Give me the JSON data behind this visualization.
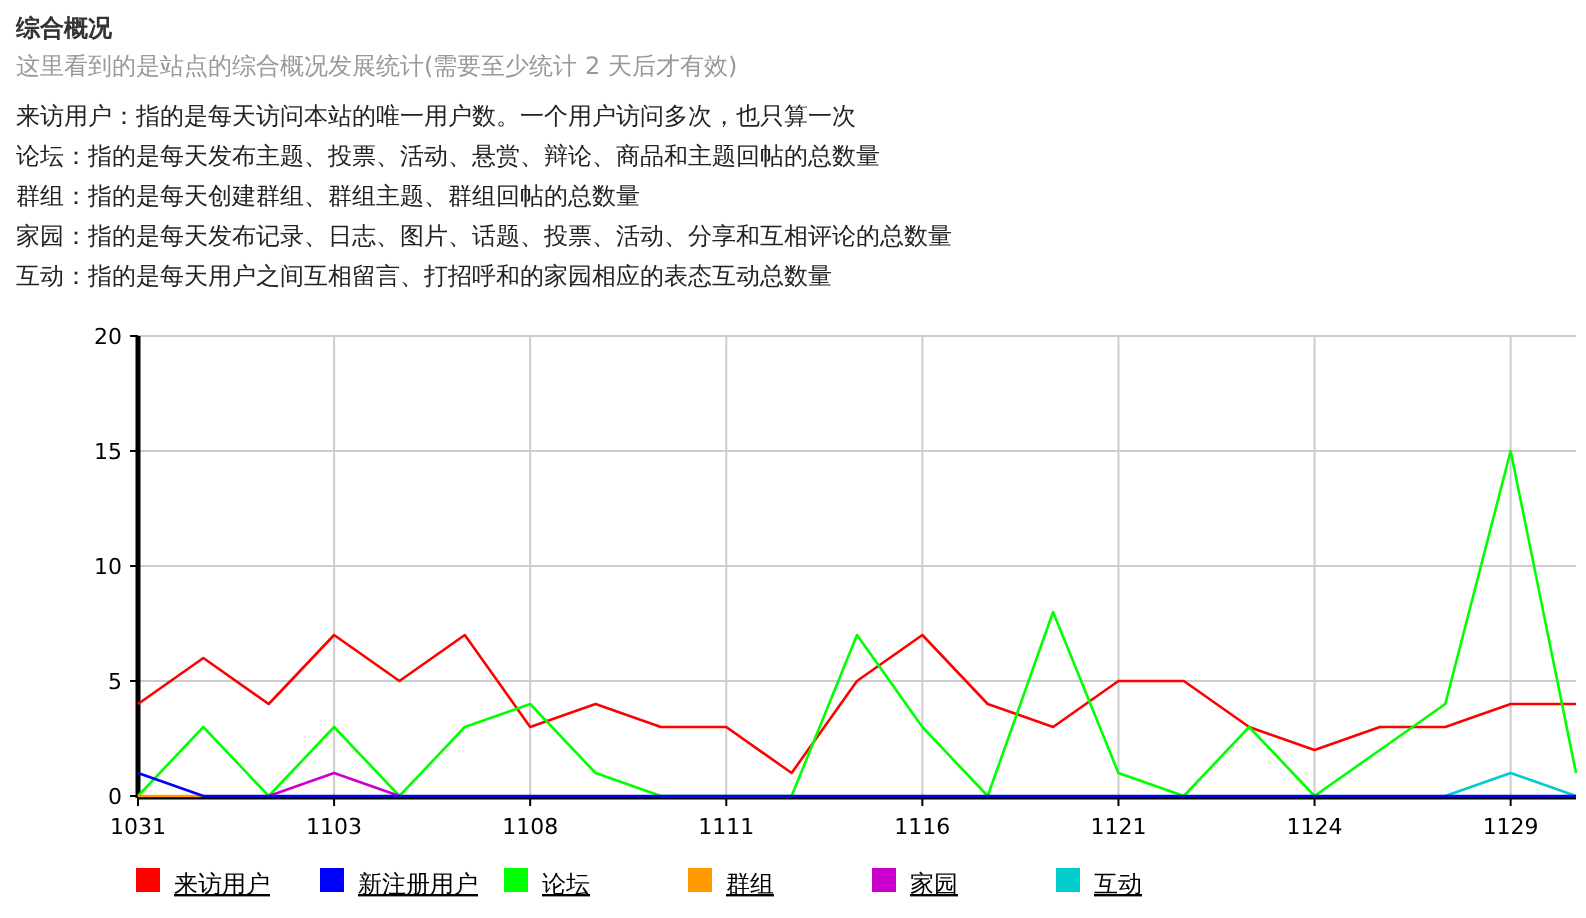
{
  "chart_data": {
    "type": "line",
    "title": "综合概况",
    "subtitle": "这里看到的是站点的综合概况发展统计(需要至少统计 2 天后才有效)",
    "annotations": [
      "来访用户：指的是每天访问本站的唯一用户数。一个用户访问多次，也只算一次",
      "论坛：指的是每天发布主题、投票、活动、悬赏、辩论、商品和主题回帖的总数量",
      "群组：指的是每天创建群组、群组主题、群组回帖的总数量",
      "家园：指的是每天发布记录、日志、图片、话题、投票、活动、分享和互相评论的总数量",
      "互动：指的是每天用户之间互相留言、打招呼和的家园相应的表态互动总数量"
    ],
    "categories": [
      "1031",
      null,
      null,
      "1103",
      null,
      null,
      "1108",
      null,
      null,
      "1111",
      null,
      null,
      "1116",
      null,
      null,
      "1121",
      null,
      null,
      "1124",
      null,
      null,
      "1129",
      null
    ],
    "series": [
      {
        "name": "来访用户",
        "color": "#ff0000",
        "values": [
          4,
          6,
          4,
          7,
          5,
          7,
          3,
          4,
          3,
          3,
          1,
          5,
          7,
          4,
          3,
          5,
          5,
          3,
          2,
          3,
          3,
          4,
          4
        ]
      },
      {
        "name": "新注册用户",
        "color": "#0000ff",
        "values": [
          1,
          0,
          0,
          0,
          0,
          0,
          0,
          0,
          0,
          0,
          0,
          0,
          0,
          0,
          0,
          0,
          0,
          0,
          0,
          0,
          0,
          0,
          0
        ]
      },
      {
        "name": "论坛",
        "color": "#00ff00",
        "values": [
          0,
          3,
          0,
          3,
          0,
          3,
          4,
          1,
          0,
          0,
          0,
          7,
          3,
          0,
          8,
          1,
          0,
          3,
          0,
          2,
          4,
          15,
          1
        ]
      },
      {
        "name": "群组",
        "color": "#ff9900",
        "values": [
          0,
          0,
          null,
          null,
          null,
          null,
          null,
          null,
          null,
          null,
          null,
          null,
          null,
          null,
          null,
          null,
          null,
          null,
          null,
          null,
          null,
          null,
          null
        ]
      },
      {
        "name": "家园",
        "color": "#cc00cc",
        "values": [
          null,
          null,
          0,
          1,
          0,
          null,
          null,
          null,
          null,
          null,
          null,
          null,
          null,
          null,
          null,
          null,
          null,
          null,
          null,
          null,
          null,
          null,
          null
        ]
      },
      {
        "name": "互动",
        "color": "#00cccc",
        "values": [
          null,
          null,
          null,
          null,
          null,
          null,
          null,
          null,
          null,
          null,
          null,
          null,
          null,
          null,
          null,
          null,
          null,
          null,
          null,
          null,
          0,
          1,
          0
        ]
      }
    ],
    "ylim": [
      0,
      20
    ],
    "yticks": [
      0,
      5,
      10,
      15,
      20
    ],
    "grid": true,
    "legend": "bottom"
  }
}
